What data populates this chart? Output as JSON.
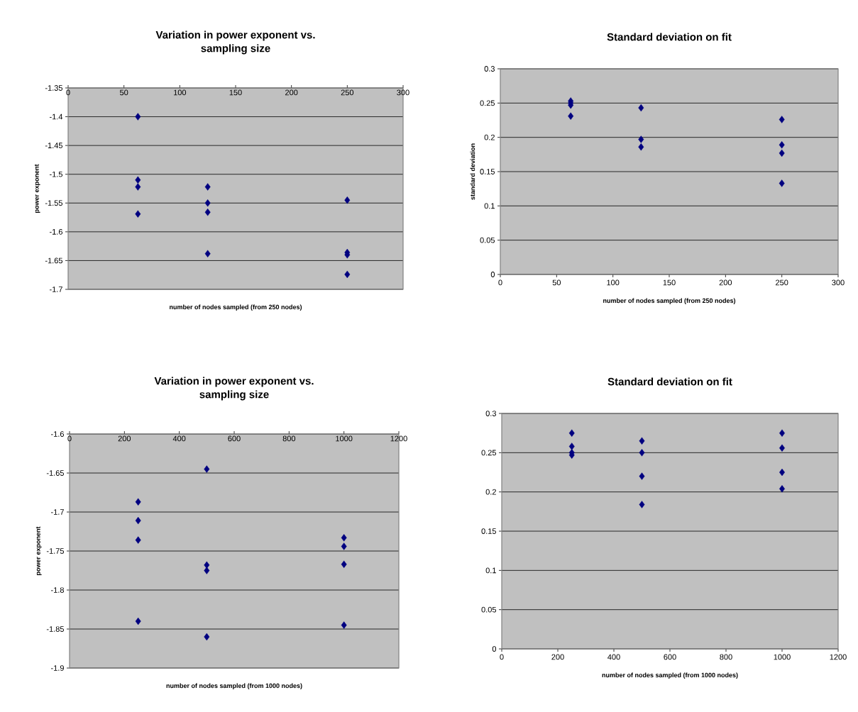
{
  "chart_data": [
    {
      "type": "scatter",
      "title": "Variation in power exponent vs. sampling size",
      "xlabel": "number of nodes sampled (from 250 nodes)",
      "ylabel": "power exponent",
      "x": [
        62.5,
        62.5,
        62.5,
        62.5,
        125,
        125,
        125,
        125,
        250,
        250,
        250,
        250
      ],
      "values": [
        -1.4,
        -1.51,
        -1.522,
        -1.569,
        -1.522,
        -1.55,
        -1.566,
        -1.638,
        -1.545,
        -1.636,
        -1.64,
        -1.674
      ],
      "color": "#000080",
      "marker": "diamond",
      "grid": "y",
      "xlim": [
        0,
        300
      ],
      "xticks": [
        0,
        50,
        100,
        150,
        200,
        250,
        300
      ],
      "ylim": [
        -1.7,
        -1.35
      ],
      "yticks": [
        -1.7,
        -1.65,
        -1.6,
        -1.55,
        -1.5,
        -1.45,
        -1.4,
        -1.35
      ]
    },
    {
      "type": "scatter",
      "title": "Standard deviation on fit",
      "xlabel": "number of nodes sampled (from 250 nodes)",
      "ylabel": "standard deviation",
      "x": [
        62.5,
        62.5,
        62.5,
        62.5,
        125,
        125,
        125,
        250,
        250,
        250,
        250
      ],
      "values": [
        0.253,
        0.25,
        0.247,
        0.231,
        0.243,
        0.197,
        0.186,
        0.226,
        0.189,
        0.177,
        0.133
      ],
      "color": "#000080",
      "marker": "diamond",
      "grid": "y",
      "xlim": [
        0,
        300
      ],
      "xticks": [
        0,
        50,
        100,
        150,
        200,
        250,
        300
      ],
      "ylim": [
        0,
        0.3
      ],
      "yticks": [
        0,
        0.05,
        0.1,
        0.15,
        0.2,
        0.25,
        0.3
      ]
    },
    {
      "type": "scatter",
      "title": "Variation in power exponent vs. sampling size",
      "xlabel": "number of nodes sampled (from 1000 nodes)",
      "ylabel": "power exponent",
      "x": [
        250,
        250,
        250,
        250,
        500,
        500,
        500,
        500,
        1000,
        1000,
        1000,
        1000
      ],
      "values": [
        -1.687,
        -1.711,
        -1.736,
        -1.84,
        -1.645,
        -1.768,
        -1.775,
        -1.86,
        -1.733,
        -1.744,
        -1.767,
        -1.845
      ],
      "color": "#000080",
      "marker": "diamond",
      "grid": "y",
      "xlim": [
        0,
        1200
      ],
      "xticks": [
        0,
        200,
        400,
        600,
        800,
        1000,
        1200
      ],
      "ylim": [
        -1.9,
        -1.6
      ],
      "yticks": [
        -1.9,
        -1.85,
        -1.8,
        -1.75,
        -1.7,
        -1.65,
        -1.6
      ]
    },
    {
      "type": "scatter",
      "title": "Standard deviation on fit",
      "xlabel": "number of nodes sampled (from 1000 nodes)",
      "x": [
        250,
        250,
        250,
        250,
        500,
        500,
        500,
        500,
        1000,
        1000,
        1000,
        1000
      ],
      "values": [
        0.275,
        0.258,
        0.25,
        0.247,
        0.265,
        0.25,
        0.22,
        0.184,
        0.275,
        0.256,
        0.225,
        0.204
      ],
      "color": "#000080",
      "marker": "diamond",
      "grid": "y",
      "xlim": [
        0,
        1200
      ],
      "xticks": [
        0,
        200,
        400,
        600,
        800,
        1000,
        1200
      ],
      "ylim": [
        0,
        0.3
      ],
      "yticks": [
        0,
        0.05,
        0.1,
        0.15,
        0.2,
        0.25,
        0.3
      ]
    }
  ]
}
